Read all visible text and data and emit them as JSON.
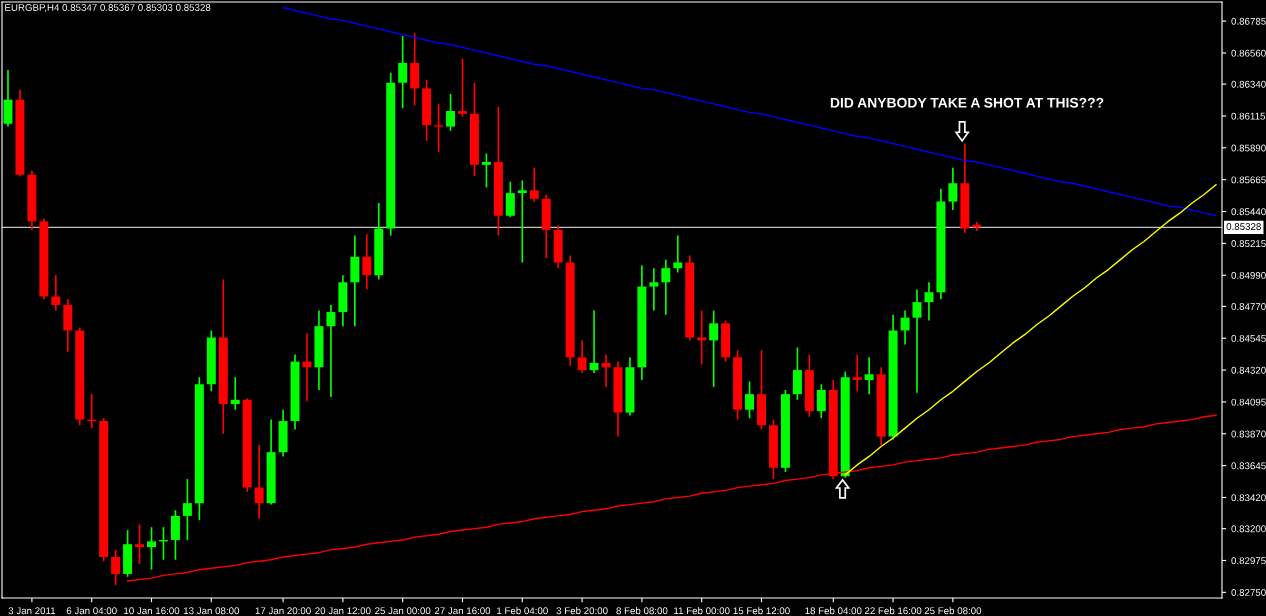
{
  "chart_data": {
    "type": "candlestick",
    "title": "EURGBP,H4 0.85347 0.85367 0.85303 0.85328",
    "categories": [
      null,
      null,
      "3 Jan 2011",
      null,
      null,
      null,
      null,
      "6 Jan 04:00",
      null,
      null,
      null,
      null,
      "10 Jan 16:00",
      null,
      null,
      null,
      null,
      "13 Jan 08:00",
      null,
      null,
      null,
      null,
      null,
      "17 Jan 20:00",
      null,
      null,
      null,
      null,
      "20 Jan 12:00",
      null,
      null,
      null,
      null,
      "25 Jan 00:00",
      null,
      null,
      null,
      null,
      "27 Jan 16:00",
      null,
      null,
      null,
      null,
      "1 Feb 04:00",
      null,
      null,
      null,
      null,
      "3 Feb 20:00",
      null,
      null,
      null,
      null,
      "8 Feb 08:00",
      null,
      null,
      null,
      null,
      "11 Feb 00:00",
      null,
      null,
      null,
      null,
      "15 Feb 12:00",
      null,
      null,
      null,
      null,
      null,
      "18 Feb 04:00",
      null,
      null,
      null,
      null,
      "22 Feb 16:00",
      null,
      null,
      null,
      null,
      "25 Feb 08:00",
      null,
      null,
      null,
      null,
      null,
      null,
      null,
      null,
      null,
      null,
      null,
      null,
      null,
      null,
      null,
      null,
      null,
      null,
      null,
      null,
      null,
      null
    ],
    "ohlc": [
      [
        0.8606,
        0.8644,
        0.8604,
        0.8623
      ],
      [
        0.8623,
        0.863,
        0.8569,
        0.857
      ],
      [
        0.857,
        0.8573,
        0.8531,
        0.8537
      ],
      [
        0.8537,
        0.8539,
        0.8482,
        0.8484
      ],
      [
        0.8484,
        0.8499,
        0.8474,
        0.8478
      ],
      [
        0.8478,
        0.8482,
        0.8445,
        0.846
      ],
      [
        0.846,
        0.8462,
        0.8393,
        0.8397
      ],
      [
        0.8397,
        0.8415,
        0.8391,
        0.8396
      ],
      [
        0.8396,
        0.8398,
        0.8297,
        0.83
      ],
      [
        0.83,
        0.8305,
        0.828,
        0.8288
      ],
      [
        0.8288,
        0.8319,
        0.8286,
        0.8309
      ],
      [
        0.8309,
        0.8323,
        0.8295,
        0.8307
      ],
      [
        0.8307,
        0.8321,
        0.8291,
        0.8311
      ],
      [
        0.8311,
        0.8321,
        0.8298,
        0.8312
      ],
      [
        0.8312,
        0.8333,
        0.8298,
        0.8329
      ],
      [
        0.8329,
        0.8355,
        0.8312,
        0.8338
      ],
      [
        0.8338,
        0.8427,
        0.8326,
        0.8422
      ],
      [
        0.8422,
        0.846,
        0.8417,
        0.8455
      ],
      [
        0.8455,
        0.8496,
        0.8387,
        0.8408
      ],
      [
        0.8408,
        0.8427,
        0.8404,
        0.8411
      ],
      [
        0.8411,
        0.8412,
        0.8346,
        0.8349
      ],
      [
        0.8349,
        0.8379,
        0.8327,
        0.8338
      ],
      [
        0.8338,
        0.8397,
        0.8337,
        0.8374
      ],
      [
        0.8374,
        0.8404,
        0.8371,
        0.8396
      ],
      [
        0.8396,
        0.8443,
        0.839,
        0.8438
      ],
      [
        0.8438,
        0.8458,
        0.841,
        0.8434
      ],
      [
        0.8434,
        0.8474,
        0.8418,
        0.8463
      ],
      [
        0.8463,
        0.8478,
        0.8413,
        0.8473
      ],
      [
        0.8473,
        0.8499,
        0.8463,
        0.8494
      ],
      [
        0.8494,
        0.8527,
        0.8463,
        0.8512
      ],
      [
        0.8512,
        0.8528,
        0.8489,
        0.8499
      ],
      [
        0.8499,
        0.855,
        0.8496,
        0.8532
      ],
      [
        0.8532,
        0.8642,
        0.8527,
        0.8635
      ],
      [
        0.8635,
        0.8668,
        0.8617,
        0.8649
      ],
      [
        0.8649,
        0.867,
        0.8619,
        0.8631
      ],
      [
        0.8631,
        0.8637,
        0.8594,
        0.8605
      ],
      [
        0.8605,
        0.862,
        0.8586,
        0.8604
      ],
      [
        0.8604,
        0.8627,
        0.8601,
        0.8615
      ],
      [
        0.8615,
        0.8652,
        0.8611,
        0.8613
      ],
      [
        0.8613,
        0.8635,
        0.8569,
        0.8577
      ],
      [
        0.8577,
        0.8585,
        0.8561,
        0.8579
      ],
      [
        0.8579,
        0.8618,
        0.8527,
        0.8541
      ],
      [
        0.8541,
        0.8565,
        0.854,
        0.8557
      ],
      [
        0.8557,
        0.8566,
        0.8508,
        0.8559
      ],
      [
        0.8559,
        0.8575,
        0.8551,
        0.8553
      ],
      [
        0.8553,
        0.8556,
        0.8511,
        0.8531
      ],
      [
        0.8531,
        0.8534,
        0.8504,
        0.8508
      ],
      [
        0.8508,
        0.8513,
        0.8435,
        0.8441
      ],
      [
        0.8441,
        0.8453,
        0.843,
        0.8432
      ],
      [
        0.8432,
        0.8474,
        0.843,
        0.8437
      ],
      [
        0.8437,
        0.8443,
        0.842,
        0.8434
      ],
      [
        0.8434,
        0.8438,
        0.8385,
        0.8402
      ],
      [
        0.8402,
        0.8441,
        0.84,
        0.8434
      ],
      [
        0.8434,
        0.8506,
        0.8425,
        0.8491
      ],
      [
        0.8491,
        0.8504,
        0.8474,
        0.8494
      ],
      [
        0.8494,
        0.851,
        0.8471,
        0.8504
      ],
      [
        0.8504,
        0.8527,
        0.8501,
        0.8508
      ],
      [
        0.8508,
        0.8513,
        0.8453,
        0.8455
      ],
      [
        0.8455,
        0.8474,
        0.8436,
        0.8453
      ],
      [
        0.8453,
        0.8474,
        0.842,
        0.8465
      ],
      [
        0.8465,
        0.8467,
        0.8438,
        0.8441
      ],
      [
        0.8441,
        0.8446,
        0.8397,
        0.8404
      ],
      [
        0.8404,
        0.8424,
        0.8398,
        0.8415
      ],
      [
        0.8415,
        0.8446,
        0.839,
        0.8393
      ],
      [
        0.8393,
        0.8397,
        0.8355,
        0.8363
      ],
      [
        0.8363,
        0.8418,
        0.836,
        0.8415
      ],
      [
        0.8415,
        0.8448,
        0.8411,
        0.8432
      ],
      [
        0.8432,
        0.8443,
        0.8399,
        0.8403
      ],
      [
        0.8403,
        0.8422,
        0.8398,
        0.8418
      ],
      [
        0.8418,
        0.8425,
        0.8355,
        0.8357
      ],
      [
        0.8357,
        0.8431,
        0.8356,
        0.8427
      ],
      [
        0.8427,
        0.8443,
        0.8417,
        0.8425
      ],
      [
        0.8425,
        0.8441,
        0.8415,
        0.8429
      ],
      [
        0.8429,
        0.8434,
        0.8379,
        0.8385
      ],
      [
        0.8385,
        0.8471,
        0.8383,
        0.846
      ],
      [
        0.846,
        0.8474,
        0.845,
        0.8469
      ],
      [
        0.8469,
        0.8489,
        0.8416,
        0.848
      ],
      [
        0.848,
        0.8494,
        0.8467,
        0.8487
      ],
      [
        0.8487,
        0.856,
        0.8482,
        0.8551
      ],
      [
        0.8551,
        0.8575,
        0.8545,
        0.8564
      ],
      [
        0.8564,
        0.8592,
        0.8529,
        0.8532
      ],
      [
        0.85347,
        0.85367,
        0.85303,
        0.85328
      ],
      null,
      null,
      null,
      null,
      null,
      null,
      null,
      null,
      null,
      null,
      null,
      null,
      null,
      null,
      null,
      null,
      null,
      null,
      null,
      null
    ],
    "colors": [
      "#00ff00",
      "#ff0000",
      "#ff0000",
      "#ff0000",
      "#ff0000",
      "#ff0000",
      "#ff0000",
      "#ff0000",
      "#ff0000",
      "#ff0000",
      "#00ff00",
      "#ff0000",
      "#00ff00",
      "#00ff00",
      "#00ff00",
      "#00ff00",
      "#00ff00",
      "#00ff00",
      "#ff0000",
      "#00ff00",
      "#ff0000",
      "#ff0000",
      "#00ff00",
      "#00ff00",
      "#00ff00",
      "#ff0000",
      "#00ff00",
      "#00ff00",
      "#00ff00",
      "#00ff00",
      "#ff0000",
      "#00ff00",
      "#00ff00",
      "#00ff00",
      "#ff0000",
      "#ff0000",
      "#ff0000",
      "#00ff00",
      "#ff0000",
      "#ff0000",
      "#00ff00",
      "#ff0000",
      "#00ff00",
      "#00ff00",
      "#ff0000",
      "#ff0000",
      "#ff0000",
      "#ff0000",
      "#ff0000",
      "#00ff00",
      "#ff0000",
      "#ff0000",
      "#00ff00",
      "#00ff00",
      "#00ff00",
      "#00ff00",
      "#00ff00",
      "#ff0000",
      "#ff0000",
      "#00ff00",
      "#ff0000",
      "#ff0000",
      "#00ff00",
      "#ff0000",
      "#ff0000",
      "#00ff00",
      "#00ff00",
      "#ff0000",
      "#00ff00",
      "#ff0000",
      "#00ff00",
      "#ff0000",
      "#00ff00",
      "#ff0000",
      "#00ff00",
      "#00ff00",
      "#00ff00",
      "#00ff00",
      "#00ff00",
      "#00ff00",
      "#ff0000",
      "#ff0000",
      null,
      null,
      null,
      null,
      null,
      null,
      null,
      null,
      null,
      null,
      null,
      null,
      null,
      null,
      null,
      null,
      null,
      null,
      null,
      null
    ],
    "series": [
      {
        "type": "line",
        "color": "#0000ff",
        "values": [
          null,
          null,
          null,
          null,
          null,
          null,
          null,
          null,
          null,
          null,
          null,
          null,
          null,
          null,
          null,
          null,
          null,
          null,
          null,
          null,
          null,
          null,
          null,
          0.8688,
          0.8686,
          0.8684,
          0.8682,
          0.868,
          0.8679,
          0.8677,
          0.8675,
          0.8673,
          0.8671,
          0.8669,
          0.8667,
          0.8665,
          0.8663,
          0.8662,
          0.866,
          0.8658,
          0.8656,
          0.8654,
          0.8652,
          0.865,
          0.8648,
          0.8647,
          0.8645,
          0.8643,
          0.8641,
          0.8639,
          0.8637,
          0.8635,
          0.8633,
          0.8631,
          0.863,
          0.8628,
          0.8626,
          0.8624,
          0.8622,
          0.862,
          0.8618,
          0.8616,
          0.8614,
          0.8613,
          0.8611,
          0.8609,
          0.8607,
          0.8605,
          0.8603,
          0.8601,
          0.8599,
          0.8597,
          0.8596,
          0.8594,
          0.8592,
          0.859,
          0.8588,
          0.8586,
          0.8584,
          0.8582,
          0.858,
          0.8579,
          0.8577,
          0.8575,
          0.8573,
          0.8571,
          0.8569,
          0.8567,
          0.8565,
          0.8564,
          0.8562,
          0.856,
          0.8558,
          0.8556,
          0.8554,
          0.8552,
          0.855,
          0.8548,
          0.8547,
          0.8545,
          0.8543,
          0.8541
        ]
      },
      {
        "type": "line",
        "color": "#ff0000",
        "values": [
          null,
          null,
          null,
          null,
          null,
          null,
          null,
          null,
          null,
          null,
          0.8283,
          0.8284,
          0.8285,
          0.8287,
          0.8288,
          0.8289,
          0.8291,
          0.8292,
          0.8293,
          0.8294,
          0.8296,
          0.8297,
          0.8298,
          0.83,
          0.8301,
          0.8302,
          0.8303,
          0.8305,
          0.8306,
          0.8307,
          0.8309,
          0.831,
          0.8311,
          0.8312,
          0.8314,
          0.8315,
          0.8316,
          0.8318,
          0.8319,
          0.832,
          0.8321,
          0.8323,
          0.8324,
          0.8325,
          0.8327,
          0.8328,
          0.8329,
          0.833,
          0.8332,
          0.8333,
          0.8334,
          0.8336,
          0.8337,
          0.8338,
          0.8339,
          0.8341,
          0.8342,
          0.8343,
          0.8345,
          0.8346,
          0.8347,
          0.8349,
          0.835,
          0.8351,
          0.8352,
          0.8354,
          0.8355,
          0.8356,
          0.8358,
          0.8359,
          0.836,
          0.8361,
          0.8363,
          0.8364,
          0.8365,
          0.8367,
          0.8368,
          0.8369,
          0.837,
          0.8372,
          0.8373,
          0.8374,
          0.8376,
          0.8377,
          0.8378,
          0.8379,
          0.8381,
          0.8382,
          0.8383,
          0.8385,
          0.8386,
          0.8387,
          0.8388,
          0.839,
          0.8391,
          0.8392,
          0.8394,
          0.8395,
          0.8396,
          0.8397,
          0.8399,
          0.84
        ]
      },
      {
        "type": "line",
        "color": "#ffff00",
        "values": [
          null,
          null,
          null,
          null,
          null,
          null,
          null,
          null,
          null,
          null,
          null,
          null,
          null,
          null,
          null,
          null,
          null,
          null,
          null,
          null,
          null,
          null,
          null,
          null,
          null,
          null,
          null,
          null,
          null,
          null,
          null,
          null,
          null,
          null,
          null,
          null,
          null,
          null,
          null,
          null,
          null,
          null,
          null,
          null,
          null,
          null,
          null,
          null,
          null,
          null,
          null,
          null,
          null,
          null,
          null,
          null,
          null,
          null,
          null,
          null,
          null,
          null,
          null,
          null,
          null,
          null,
          null,
          null,
          null,
          null,
          0.8358,
          0.8365,
          0.8371,
          0.8378,
          0.8384,
          0.8391,
          0.8398,
          0.8404,
          0.8411,
          0.8417,
          0.8424,
          0.8431,
          0.8437,
          0.8444,
          0.8451,
          0.8457,
          0.8464,
          0.847,
          0.8477,
          0.8484,
          0.849,
          0.8497,
          0.8503,
          0.851,
          0.8517,
          0.8523,
          0.853,
          0.8537,
          0.8543,
          0.855,
          0.8556,
          0.8563
        ]
      }
    ],
    "ref_lines": [
      {
        "axis": "y",
        "value": 0.85328,
        "label": "0.85328",
        "color": "#c0c0c0"
      }
    ],
    "annotations": [
      "DID ANYBODY TAKE A SHOT AT THIS???"
    ],
    "ylim": [
      0.8271,
      0.8692
    ],
    "yticks": [
      {
        "value": 0.8275,
        "label": "0.82750"
      },
      0.82975,
      {
        "value": 0.832,
        "label": "0.83200"
      },
      {
        "value": 0.8342,
        "label": "0.83420"
      },
      0.83645,
      {
        "value": 0.8387,
        "label": "0.83870"
      },
      0.84095,
      {
        "value": 0.8432,
        "label": "0.84320"
      },
      0.84545,
      {
        "value": 0.8477,
        "label": "0.84770"
      },
      {
        "value": 0.8499,
        "label": "0.84990"
      },
      0.85215,
      {
        "value": 0.8544,
        "label": "0.85440"
      },
      0.85665,
      {
        "value": 0.8589,
        "label": "0.85890"
      },
      0.86115,
      {
        "value": 0.8634,
        "label": "0.86340"
      },
      {
        "value": 0.8656,
        "label": "0.86560"
      },
      0.86785
    ],
    "grid": false
  }
}
